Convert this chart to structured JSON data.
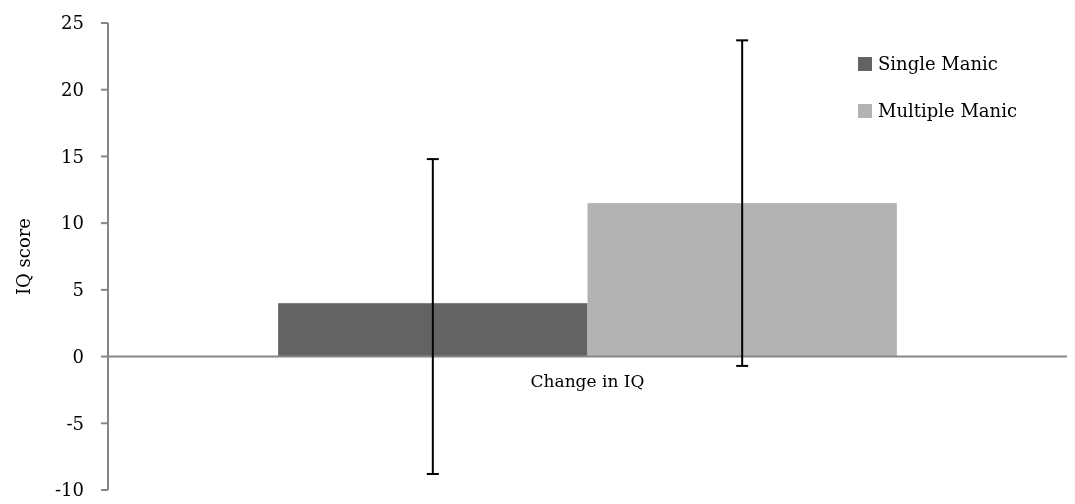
{
  "chart_data": {
    "type": "bar",
    "ylabel": "IQ score",
    "categories": [
      "Change in IQ"
    ],
    "series": [
      {
        "name": "Single Manic",
        "color": "#636363",
        "values": [
          4.0
        ],
        "errors": [
          [
            -8.8,
            14.8
          ]
        ]
      },
      {
        "name": "Multiple Manic",
        "color": "#b2b2b2",
        "values": [
          11.5
        ],
        "errors": [
          [
            -0.7,
            23.7
          ]
        ]
      }
    ],
    "ylim": [
      -10,
      25
    ],
    "yticks": [
      -10,
      -5,
      0,
      5,
      10,
      15,
      20,
      25
    ],
    "legend": "top right"
  }
}
